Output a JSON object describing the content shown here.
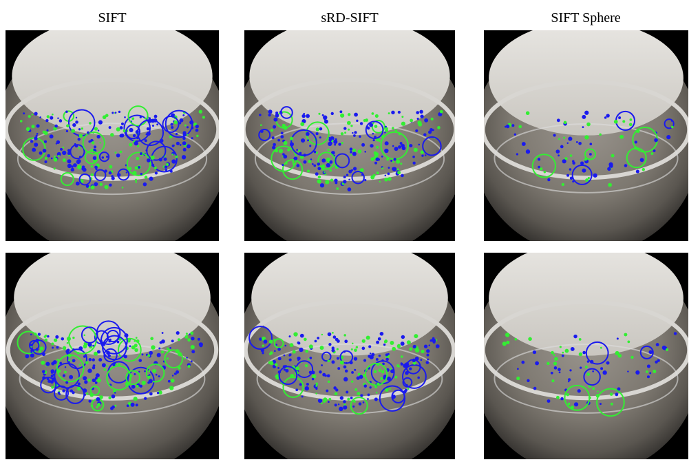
{
  "columns": [
    {
      "title": "SIFT"
    },
    {
      "title": "sRD-SIFT"
    },
    {
      "title": "SIFT Sphere"
    }
  ]
}
